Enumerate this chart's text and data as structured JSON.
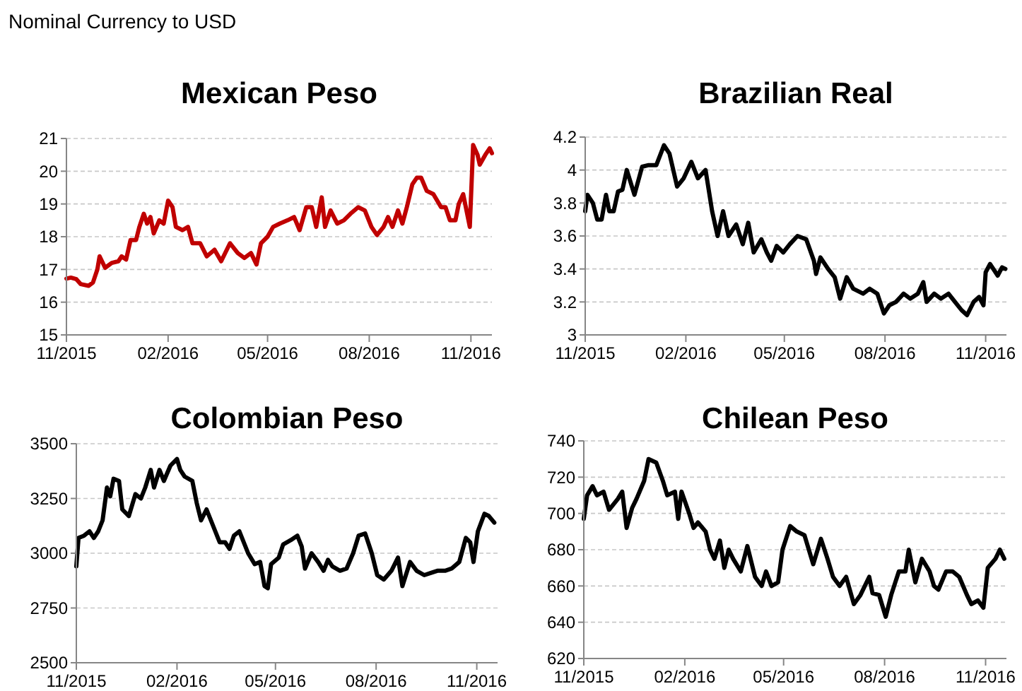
{
  "chart_data": [
    {
      "type": "line",
      "title": "Mexican Peso",
      "annotations": [
        "Nominal Currency to USD"
      ],
      "color": "#c00000",
      "grid": "y",
      "xlim": [
        "2015-11-01",
        "2016-11-20"
      ],
      "xticks": [
        {
          "value": "2015-11-01",
          "label": "11/2015"
        },
        {
          "value": "2016-02-01",
          "label": "02/2016"
        },
        {
          "value": "2016-05-01",
          "label": "05/2016"
        },
        {
          "value": "2016-08-01",
          "label": "08/2016"
        },
        {
          "value": "2016-11-01",
          "label": "11/2016"
        }
      ],
      "ylim": [
        15,
        21
      ],
      "yticks": [
        15,
        16,
        17,
        18,
        19,
        20,
        21
      ],
      "x": [
        "2015-11-01",
        "2015-11-05",
        "2015-11-10",
        "2015-11-14",
        "2015-11-21",
        "2015-11-25",
        "2015-11-29",
        "2015-12-01",
        "2015-12-06",
        "2015-12-12",
        "2015-12-18",
        "2015-12-21",
        "2015-12-25",
        "2015-12-29",
        "2016-01-03",
        "2016-01-06",
        "2016-01-10",
        "2016-01-13",
        "2016-01-16",
        "2016-01-19",
        "2016-01-24",
        "2016-01-28",
        "2016-02-01",
        "2016-02-05",
        "2016-02-08",
        "2016-02-14",
        "2016-02-19",
        "2016-02-23",
        "2016-03-01",
        "2016-03-07",
        "2016-03-14",
        "2016-03-20",
        "2016-03-28",
        "2016-04-04",
        "2016-04-10",
        "2016-04-16",
        "2016-04-21",
        "2016-04-25",
        "2016-05-01",
        "2016-05-06",
        "2016-05-12",
        "2016-05-19",
        "2016-05-25",
        "2016-05-30",
        "2016-06-05",
        "2016-06-10",
        "2016-06-14",
        "2016-06-19",
        "2016-06-22",
        "2016-06-27",
        "2016-07-03",
        "2016-07-09",
        "2016-07-15",
        "2016-07-22",
        "2016-07-28",
        "2016-08-03",
        "2016-08-08",
        "2016-08-14",
        "2016-08-18",
        "2016-08-22",
        "2016-08-27",
        "2016-08-31",
        "2016-09-04",
        "2016-09-09",
        "2016-09-13",
        "2016-09-17",
        "2016-09-22",
        "2016-09-28",
        "2016-10-05",
        "2016-10-09",
        "2016-10-13",
        "2016-10-18",
        "2016-10-21",
        "2016-10-25",
        "2016-10-28",
        "2016-10-31",
        "2016-11-03",
        "2016-11-07",
        "2016-11-09",
        "2016-11-14",
        "2016-11-18",
        "2016-11-20"
      ],
      "values": [
        16.72,
        16.75,
        16.7,
        16.55,
        16.5,
        16.6,
        17.0,
        17.4,
        17.05,
        17.2,
        17.25,
        17.4,
        17.3,
        17.9,
        17.9,
        18.3,
        18.7,
        18.4,
        18.6,
        18.1,
        18.5,
        18.4,
        19.1,
        18.9,
        18.3,
        18.2,
        18.3,
        17.8,
        17.8,
        17.4,
        17.6,
        17.25,
        17.8,
        17.5,
        17.35,
        17.5,
        17.15,
        17.8,
        18.0,
        18.3,
        18.4,
        18.5,
        18.6,
        18.2,
        18.9,
        18.9,
        18.3,
        19.2,
        18.3,
        18.8,
        18.4,
        18.5,
        18.7,
        18.9,
        18.8,
        18.3,
        18.05,
        18.3,
        18.6,
        18.3,
        18.8,
        18.4,
        18.9,
        19.6,
        19.8,
        19.8,
        19.4,
        19.3,
        18.9,
        18.9,
        18.5,
        18.5,
        19.0,
        19.3,
        18.8,
        18.3,
        20.8,
        20.5,
        20.2,
        20.5,
        20.7,
        20.55
      ]
    },
    {
      "type": "line",
      "title": "Brazilian Real",
      "color": "#000000",
      "grid": "y",
      "xlim": [
        "2015-11-01",
        "2016-11-20"
      ],
      "xticks": [
        {
          "value": "2015-11-01",
          "label": "11/2015"
        },
        {
          "value": "2016-02-01",
          "label": "02/2016"
        },
        {
          "value": "2016-05-01",
          "label": "05/2016"
        },
        {
          "value": "2016-08-01",
          "label": "08/2016"
        },
        {
          "value": "2016-11-01",
          "label": "11/2016"
        }
      ],
      "ylim": [
        3,
        4.2
      ],
      "yticks": [
        3,
        3.2,
        3.4,
        3.6,
        3.8,
        4,
        4.2
      ],
      "x": [
        "2015-11-01",
        "2015-11-03",
        "2015-11-08",
        "2015-11-12",
        "2015-11-16",
        "2015-11-20",
        "2015-11-23",
        "2015-11-27",
        "2015-12-01",
        "2015-12-05",
        "2015-12-09",
        "2015-12-16",
        "2015-12-23",
        "2015-12-29",
        "2016-01-05",
        "2016-01-12",
        "2016-01-17",
        "2016-01-24",
        "2016-01-30",
        "2016-02-06",
        "2016-02-12",
        "2016-02-19",
        "2016-02-25",
        "2016-03-01",
        "2016-03-06",
        "2016-03-11",
        "2016-03-18",
        "2016-03-24",
        "2016-03-29",
        "2016-04-03",
        "2016-04-10",
        "2016-04-15",
        "2016-04-19",
        "2016-04-24",
        "2016-04-30",
        "2016-05-06",
        "2016-05-13",
        "2016-05-21",
        "2016-05-28",
        "2016-05-30",
        "2016-06-03",
        "2016-06-10",
        "2016-06-16",
        "2016-06-21",
        "2016-06-27",
        "2016-07-03",
        "2016-07-12",
        "2016-07-18",
        "2016-07-25",
        "2016-07-31",
        "2016-08-05",
        "2016-08-11",
        "2016-08-18",
        "2016-08-24",
        "2016-08-31",
        "2016-09-05",
        "2016-09-08",
        "2016-09-15",
        "2016-09-21",
        "2016-09-28",
        "2016-10-04",
        "2016-10-10",
        "2016-10-15",
        "2016-10-21",
        "2016-10-26",
        "2016-10-30",
        "2016-11-01",
        "2016-11-05",
        "2016-11-12",
        "2016-11-16",
        "2016-11-19"
      ],
      "values": [
        3.75,
        3.85,
        3.8,
        3.7,
        3.7,
        3.85,
        3.75,
        3.75,
        3.87,
        3.88,
        4.0,
        3.85,
        4.02,
        4.03,
        4.03,
        4.15,
        4.1,
        3.9,
        3.95,
        4.05,
        3.95,
        4.0,
        3.75,
        3.6,
        3.75,
        3.6,
        3.67,
        3.55,
        3.68,
        3.5,
        3.58,
        3.5,
        3.45,
        3.54,
        3.5,
        3.55,
        3.6,
        3.58,
        3.45,
        3.37,
        3.47,
        3.4,
        3.35,
        3.22,
        3.35,
        3.28,
        3.25,
        3.28,
        3.25,
        3.13,
        3.18,
        3.2,
        3.25,
        3.22,
        3.25,
        3.32,
        3.2,
        3.25,
        3.22,
        3.25,
        3.2,
        3.15,
        3.12,
        3.2,
        3.23,
        3.18,
        3.38,
        3.43,
        3.36,
        3.41,
        3.4
      ]
    },
    {
      "type": "line",
      "title": "Colombian Peso",
      "color": "#000000",
      "grid": "y",
      "xlim": [
        "2015-11-01",
        "2016-11-20"
      ],
      "xticks": [
        {
          "value": "2015-11-01",
          "label": "11/2015"
        },
        {
          "value": "2016-02-01",
          "label": "02/2016"
        },
        {
          "value": "2016-05-01",
          "label": "05/2016"
        },
        {
          "value": "2016-08-01",
          "label": "08/2016"
        },
        {
          "value": "2016-11-01",
          "label": "11/2016"
        }
      ],
      "ylim": [
        2500,
        3500
      ],
      "yticks": [
        2500,
        2750,
        3000,
        3250,
        3500
      ],
      "x": [
        "2015-11-01",
        "2015-11-03",
        "2015-11-08",
        "2015-11-13",
        "2015-11-17",
        "2015-11-21",
        "2015-11-25",
        "2015-11-29",
        "2015-12-02",
        "2015-12-05",
        "2015-12-10",
        "2015-12-13",
        "2015-12-19",
        "2015-12-25",
        "2015-12-30",
        "2016-01-03",
        "2016-01-08",
        "2016-01-11",
        "2016-01-16",
        "2016-01-20",
        "2016-01-26",
        "2016-02-01",
        "2016-02-04",
        "2016-02-08",
        "2016-02-15",
        "2016-02-19",
        "2016-02-23",
        "2016-02-28",
        "2016-03-03",
        "2016-03-07",
        "2016-03-11",
        "2016-03-16",
        "2016-03-20",
        "2016-03-24",
        "2016-03-29",
        "2016-04-02",
        "2016-04-06",
        "2016-04-12",
        "2016-04-17",
        "2016-04-21",
        "2016-04-24",
        "2016-04-27",
        "2016-05-04",
        "2016-05-08",
        "2016-05-15",
        "2016-05-21",
        "2016-05-25",
        "2016-05-28",
        "2016-06-03",
        "2016-06-09",
        "2016-06-14",
        "2016-06-18",
        "2016-06-22",
        "2016-06-29",
        "2016-07-05",
        "2016-07-11",
        "2016-07-16",
        "2016-07-22",
        "2016-07-28",
        "2016-08-02",
        "2016-08-08",
        "2016-08-15",
        "2016-08-21",
        "2016-08-25",
        "2016-09-01",
        "2016-09-07",
        "2016-09-14",
        "2016-09-20",
        "2016-09-26",
        "2016-10-03",
        "2016-10-09",
        "2016-10-16",
        "2016-10-22",
        "2016-10-26",
        "2016-10-29",
        "2016-11-02",
        "2016-11-08",
        "2016-11-12",
        "2016-11-17"
      ],
      "values": [
        2940,
        3070,
        3080,
        3100,
        3070,
        3100,
        3150,
        3300,
        3260,
        3340,
        3330,
        3200,
        3170,
        3270,
        3250,
        3300,
        3380,
        3300,
        3380,
        3330,
        3400,
        3430,
        3380,
        3350,
        3330,
        3230,
        3150,
        3200,
        3150,
        3100,
        3050,
        3050,
        3020,
        3080,
        3100,
        3050,
        3000,
        2950,
        2960,
        2850,
        2840,
        2950,
        2980,
        3040,
        3060,
        3080,
        3030,
        2930,
        3000,
        2960,
        2920,
        2970,
        2940,
        2920,
        2930,
        3000,
        3080,
        3090,
        3000,
        2900,
        2880,
        2920,
        2980,
        2850,
        2960,
        2920,
        2900,
        2910,
        2920,
        2920,
        2930,
        2960,
        3070,
        3050,
        2960,
        3100,
        3180,
        3170,
        3140
      ]
    },
    {
      "type": "line",
      "title": "Chilean Peso",
      "color": "#000000",
      "grid": "y",
      "xlim": [
        "2015-11-01",
        "2016-11-20"
      ],
      "xticks": [
        {
          "value": "2015-11-01",
          "label": "11/2015"
        },
        {
          "value": "2016-02-01",
          "label": "02/2016"
        },
        {
          "value": "2016-05-01",
          "label": "05/2016"
        },
        {
          "value": "2016-08-01",
          "label": "08/2016"
        },
        {
          "value": "2016-11-01",
          "label": "11/2016"
        }
      ],
      "ylim": [
        620,
        740
      ],
      "yticks": [
        620,
        640,
        660,
        680,
        700,
        720,
        740
      ],
      "x": [
        "2015-11-01",
        "2015-11-04",
        "2015-11-09",
        "2015-11-13",
        "2015-11-19",
        "2015-11-24",
        "2015-11-28",
        "2015-12-02",
        "2015-12-06",
        "2015-12-10",
        "2015-12-15",
        "2015-12-19",
        "2015-12-26",
        "2015-12-30",
        "2016-01-06",
        "2016-01-12",
        "2016-01-16",
        "2016-01-23",
        "2016-01-26",
        "2016-01-29",
        "2016-02-05",
        "2016-02-09",
        "2016-02-13",
        "2016-02-20",
        "2016-02-24",
        "2016-02-28",
        "2016-03-04",
        "2016-03-08",
        "2016-03-12",
        "2016-03-16",
        "2016-03-23",
        "2016-03-29",
        "2016-04-05",
        "2016-04-11",
        "2016-04-15",
        "2016-04-20",
        "2016-04-26",
        "2016-04-30",
        "2016-05-07",
        "2016-05-13",
        "2016-05-20",
        "2016-05-28",
        "2016-06-04",
        "2016-06-10",
        "2016-06-15",
        "2016-06-21",
        "2016-06-27",
        "2016-07-04",
        "2016-07-10",
        "2016-07-18",
        "2016-07-21",
        "2016-07-27",
        "2016-08-02",
        "2016-08-07",
        "2016-08-14",
        "2016-08-20",
        "2016-08-23",
        "2016-08-29",
        "2016-09-04",
        "2016-09-11",
        "2016-09-15",
        "2016-09-19",
        "2016-09-26",
        "2016-10-02",
        "2016-10-08",
        "2016-10-15",
        "2016-10-19",
        "2016-10-25",
        "2016-10-30",
        "2016-11-03",
        "2016-11-10",
        "2016-11-14",
        "2016-11-18"
      ],
      "values": [
        697,
        710,
        715,
        710,
        712,
        702,
        705,
        708,
        712,
        692,
        703,
        708,
        718,
        730,
        728,
        718,
        710,
        712,
        697,
        712,
        700,
        692,
        695,
        690,
        680,
        675,
        685,
        670,
        680,
        675,
        668,
        682,
        665,
        660,
        668,
        660,
        662,
        680,
        693,
        690,
        688,
        672,
        686,
        675,
        665,
        660,
        665,
        650,
        655,
        665,
        656,
        655,
        643,
        655,
        668,
        668,
        680,
        662,
        675,
        668,
        660,
        658,
        668,
        668,
        665,
        655,
        650,
        652,
        648,
        670,
        675,
        680,
        675
      ]
    }
  ]
}
